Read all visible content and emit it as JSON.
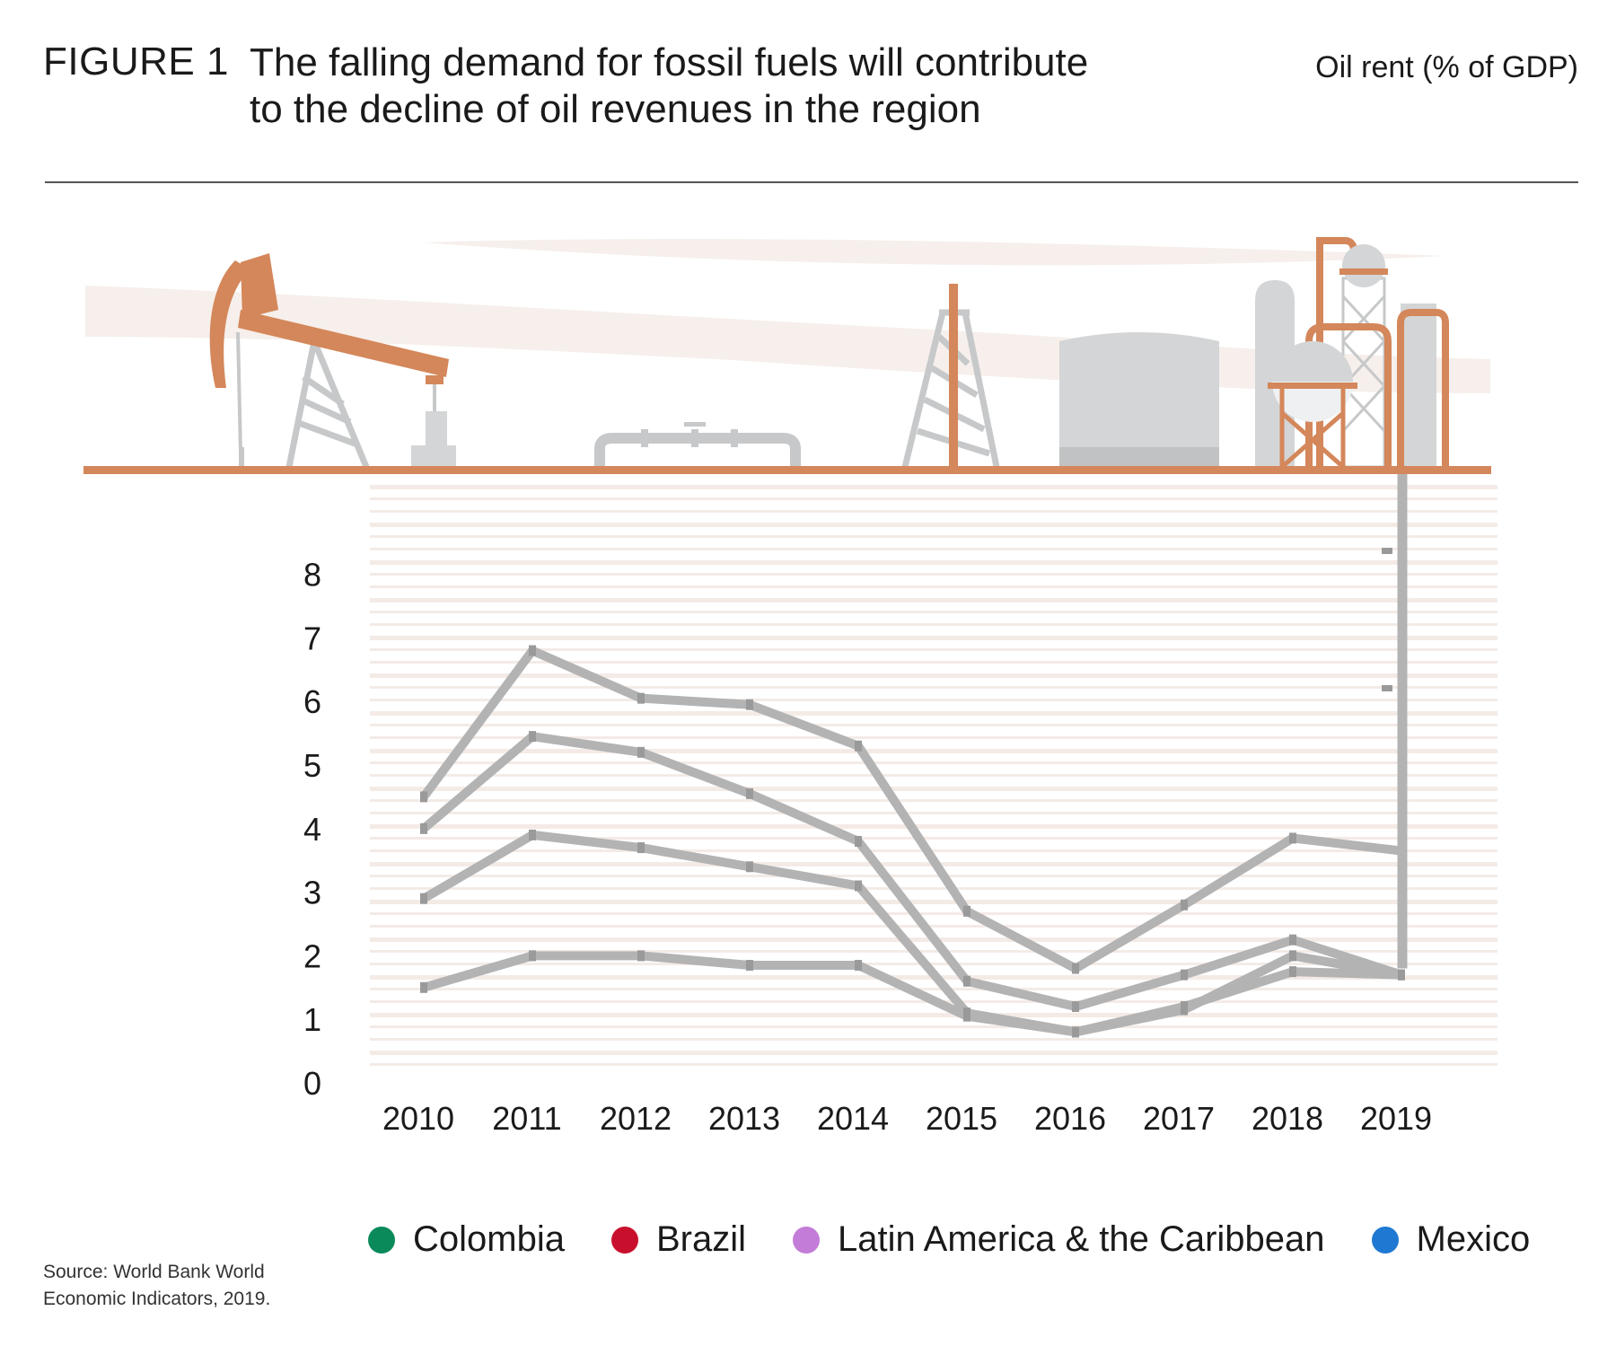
{
  "header": {
    "figure_label": "FIGURE 1",
    "title_line1": "The falling demand for fossil fuels will contribute",
    "title_line2": "to the decline of oil revenues in the region",
    "unit_label": "Oil rent (% of GDP)"
  },
  "colors": {
    "accent": "#d4875a",
    "series_line": "#b3b3b3",
    "facility_gray": "#d3d5d6",
    "ground_bands": "#f4ebe6"
  },
  "chart_data": {
    "type": "line",
    "title": "The falling demand for fossil fuels will contribute to the decline of oil revenues in the region",
    "ylabel": "Oil rent (% of GDP)",
    "xlabel": "",
    "categories": [
      "2010",
      "2011",
      "2012",
      "2013",
      "2014",
      "2015",
      "2016",
      "2017",
      "2018",
      "2019"
    ],
    "y_ticks": [
      "0",
      "1",
      "2",
      "3",
      "4",
      "5",
      "6",
      "7",
      "8"
    ],
    "ylim": [
      0,
      8
    ],
    "grid": false,
    "legend_position": "bottom",
    "series": [
      {
        "name": "Colombia",
        "color": "#0a8a5a",
        "values": [
          4.5,
          6.8,
          6.05,
          5.95,
          5.3,
          2.7,
          1.8,
          2.8,
          3.85,
          3.65
        ]
      },
      {
        "name": "Brazil",
        "color": "#c8102e",
        "values": [
          1.5,
          2.0,
          2.0,
          1.85,
          1.85,
          1.05,
          0.8,
          1.15,
          2.0,
          1.7
        ]
      },
      {
        "name": "Latin America & the Caribbean",
        "color": "#c37cd8",
        "values": [
          4.0,
          5.45,
          5.2,
          4.55,
          3.8,
          1.6,
          1.2,
          1.7,
          2.25,
          1.7
        ]
      },
      {
        "name": "Mexico",
        "color": "#1f78d1",
        "values": [
          2.9,
          3.9,
          3.7,
          3.4,
          3.1,
          1.1,
          0.8,
          1.2,
          1.75,
          1.7
        ]
      }
    ],
    "annotations": [
      "Series line colors are shown in gray in the graphic; the 2019 point ends in a vertical well pipe rising to the refinery."
    ]
  },
  "legend": {
    "items": [
      {
        "label": "Colombia",
        "color": "#0a8a5a"
      },
      {
        "label": "Brazil",
        "color": "#c8102e"
      },
      {
        "label": "Latin America & the Caribbean",
        "color": "#c37cd8"
      },
      {
        "label": "Mexico",
        "color": "#1f78d1"
      }
    ]
  },
  "footer": {
    "source_line1": "Source: World Bank World",
    "source_line2": "Economic Indicators, 2019."
  }
}
